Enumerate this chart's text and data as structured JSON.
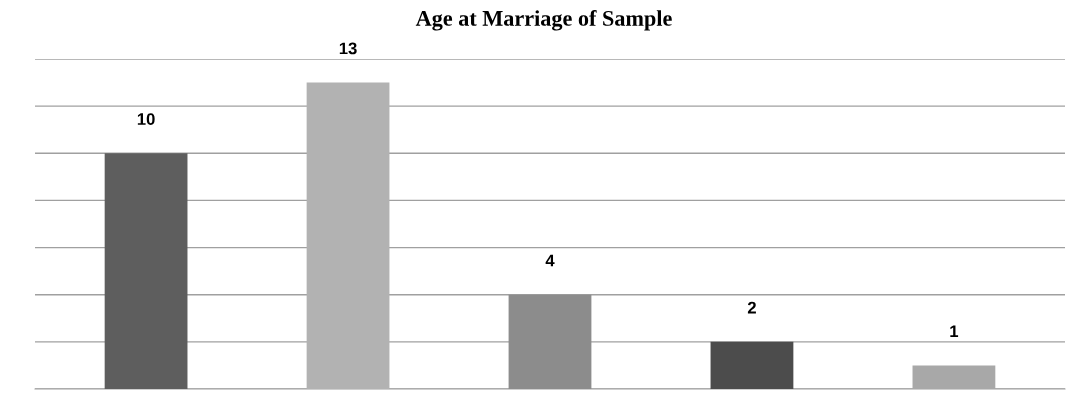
{
  "chart_data": {
    "type": "bar",
    "title": "Age at Marriage of Sample",
    "categories": [
      null,
      null,
      null,
      null,
      null
    ],
    "values": [
      10,
      13,
      4,
      2,
      1
    ],
    "colors": [
      "#5e5e5e",
      "#b2b2b2",
      "#8c8c8c",
      "#4c4c4c",
      "#a8a8a8"
    ],
    "ylim": [
      0,
      14
    ],
    "yticks": [
      {
        "value": 0,
        "label": null
      },
      {
        "value": 2,
        "label": null
      },
      {
        "value": 4,
        "label": null
      },
      {
        "value": 6,
        "label": null
      },
      {
        "value": 8,
        "label": null
      },
      {
        "value": 10,
        "label": null
      },
      {
        "value": 12,
        "label": null
      },
      {
        "value": 14,
        "label": null
      }
    ],
    "grid": "y",
    "data_labels": true
  }
}
